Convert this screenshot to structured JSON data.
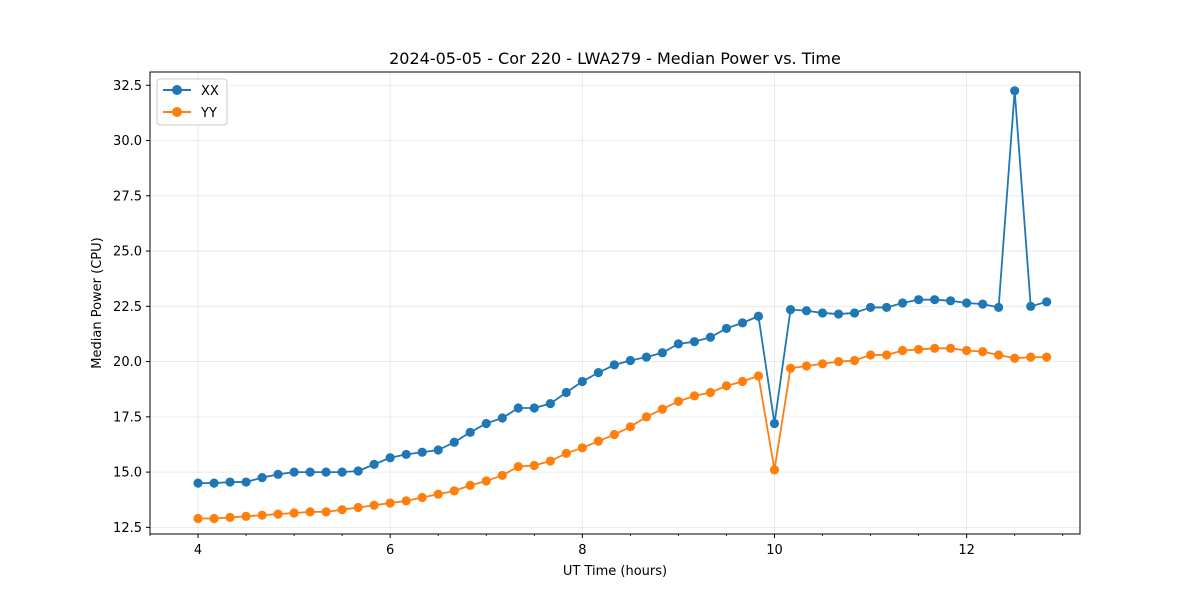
{
  "chart_data": {
    "type": "line",
    "title": "2024-05-05 - Cor 220 - LWA279 - Median Power vs. Time",
    "xlabel": "UT Time (hours)",
    "ylabel": "Median Power (CPU)",
    "xlim": [
      3.5,
      13.18
    ],
    "ylim": [
      12.2,
      33.1
    ],
    "xticks": [
      4,
      6,
      8,
      10,
      12
    ],
    "yticks": [
      12.5,
      15.0,
      17.5,
      20.0,
      22.5,
      25.0,
      27.5,
      30.0,
      32.5
    ],
    "ytick_labels": [
      "12.5",
      "15.0",
      "17.5",
      "20.0",
      "22.5",
      "25.0",
      "27.5",
      "30.0",
      "32.5"
    ],
    "grid": true,
    "legend_position": "top-left",
    "x": [
      4.0,
      4.167,
      4.333,
      4.5,
      4.667,
      4.833,
      5.0,
      5.167,
      5.333,
      5.5,
      5.667,
      5.833,
      6.0,
      6.167,
      6.333,
      6.5,
      6.667,
      6.833,
      7.0,
      7.167,
      7.333,
      7.5,
      7.667,
      7.833,
      8.0,
      8.167,
      8.333,
      8.5,
      8.667,
      8.833,
      9.0,
      9.167,
      9.333,
      9.5,
      9.667,
      9.833,
      10.0,
      10.167,
      10.333,
      10.5,
      10.667,
      10.833,
      11.0,
      11.167,
      11.333,
      11.5,
      11.667,
      11.833,
      12.0,
      12.167,
      12.333,
      12.5,
      12.667,
      12.833
    ],
    "series": [
      {
        "name": "XX",
        "color": "#1f77b4",
        "values": [
          14.5,
          14.5,
          14.55,
          14.55,
          14.75,
          14.9,
          15.0,
          15.0,
          15.0,
          15.0,
          15.05,
          15.35,
          15.65,
          15.8,
          15.9,
          16.0,
          16.35,
          16.8,
          17.2,
          17.45,
          17.9,
          17.9,
          18.1,
          18.6,
          19.1,
          19.5,
          19.85,
          20.05,
          20.2,
          20.4,
          20.8,
          20.9,
          21.1,
          21.5,
          21.75,
          22.05,
          17.2,
          22.35,
          22.3,
          22.2,
          22.15,
          22.2,
          22.45,
          22.45,
          22.65,
          22.8,
          22.8,
          22.75,
          22.65,
          22.6,
          22.45,
          32.25,
          22.5,
          22.7
        ]
      },
      {
        "name": "YY",
        "color": "#ff7f0e",
        "values": [
          12.9,
          12.9,
          12.95,
          13.0,
          13.05,
          13.1,
          13.15,
          13.2,
          13.2,
          13.3,
          13.4,
          13.5,
          13.6,
          13.7,
          13.85,
          14.0,
          14.15,
          14.4,
          14.6,
          14.85,
          15.25,
          15.3,
          15.5,
          15.85,
          16.1,
          16.4,
          16.7,
          17.05,
          17.5,
          17.85,
          18.2,
          18.45,
          18.6,
          18.9,
          19.1,
          19.35,
          15.1,
          19.7,
          19.8,
          19.9,
          20.0,
          20.05,
          20.3,
          20.3,
          20.5,
          20.55,
          20.6,
          20.6,
          20.5,
          20.45,
          20.3,
          20.15,
          20.2,
          20.2
        ]
      }
    ]
  }
}
